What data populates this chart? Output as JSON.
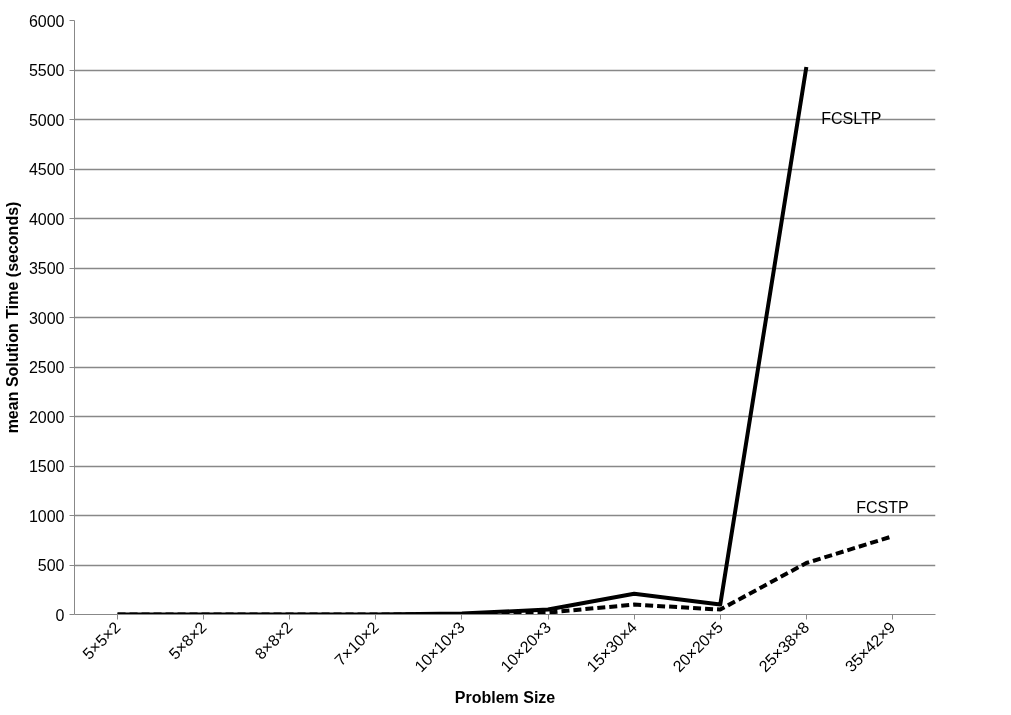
{
  "chart_data": {
    "type": "line",
    "xlabel": "Problem Size",
    "ylabel": "mean Solution Time (seconds)",
    "categories": [
      "5×5×2",
      "5×8×2",
      "8×8×2",
      "7×10×2",
      "10×10×3",
      "10×20×3",
      "15×30×4",
      "20×20×5",
      "25×38×8",
      "35×42×9"
    ],
    "series": [
      {
        "name": "FCSLTP",
        "color": "#000000",
        "line_style": "solid",
        "values": [
          0,
          0,
          0,
          0,
          10,
          50,
          210,
          100,
          5530,
          null
        ]
      },
      {
        "name": "FCSTP",
        "color": "#000000",
        "line_style": "dashed",
        "values": [
          0,
          0,
          0,
          0,
          0,
          20,
          100,
          50,
          520,
          790
        ]
      }
    ],
    "ylim": [
      0,
      6000
    ],
    "yticks": [
      0,
      500,
      1000,
      1500,
      2000,
      2500,
      3000,
      3500,
      4000,
      4500,
      5000,
      5500,
      6000
    ],
    "grid": "y",
    "legend": false,
    "marker": "none"
  }
}
